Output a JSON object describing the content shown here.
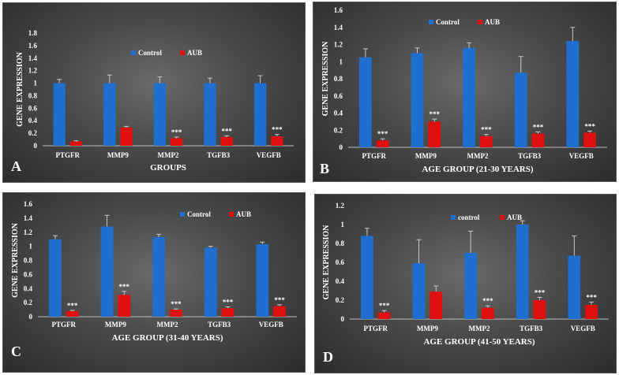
{
  "colors": {
    "control": "#1f6fd1",
    "aub": "#e01010",
    "axis": "#bdbdbd",
    "text": "#ffffff",
    "letter": "#ffffff"
  },
  "chart_data": [
    {
      "type": "bar",
      "panel_letter": "A",
      "xlabel": "GROUPS",
      "ylabel": "GENE EXPRESSION",
      "ylim": [
        0,
        1.8
      ],
      "yticks": [
        "0",
        "0.2",
        "0.4",
        "0.6",
        "0.8",
        "1",
        "1.2",
        "1.4",
        "1.6",
        "1.8"
      ],
      "legend_placement": "top-center",
      "categories": [
        "PTGFR",
        "MMP9",
        "MMP2",
        "TGFB3",
        "VEGFB"
      ],
      "series": [
        {
          "name": "Control",
          "values": [
            1.0,
            1.0,
            1.0,
            1.0,
            1.0
          ],
          "errors": [
            0.06,
            0.13,
            0.1,
            0.08,
            0.12
          ]
        },
        {
          "name": "AUB",
          "values": [
            0.07,
            0.29,
            0.12,
            0.14,
            0.15
          ],
          "errors": [
            0.01,
            0.02,
            0.02,
            0.02,
            0.03
          ]
        }
      ],
      "annotations": [
        "",
        "",
        "***",
        "***",
        "***"
      ]
    },
    {
      "type": "bar",
      "panel_letter": "B",
      "xlabel": "AGE GROUP (21-30 YEARS)",
      "ylabel": "GENE EXPRESSION",
      "ylim": [
        0,
        1.6
      ],
      "yticks": [
        "0",
        "0.2",
        "0.4",
        "0.6",
        "0.8",
        "1",
        "1.2",
        "1.4",
        "1.6"
      ],
      "legend_placement": "top-center",
      "categories": [
        "PTGFR",
        "MMP9",
        "MMP2",
        "TGFB3",
        "VEGFB"
      ],
      "series": [
        {
          "name": "Control",
          "values": [
            1.05,
            1.1,
            1.16,
            0.87,
            1.24
          ],
          "errors": [
            0.1,
            0.06,
            0.06,
            0.19,
            0.16
          ]
        },
        {
          "name": "AUB",
          "values": [
            0.08,
            0.3,
            0.13,
            0.16,
            0.17
          ],
          "errors": [
            0.02,
            0.03,
            0.02,
            0.02,
            0.02
          ]
        }
      ],
      "annotations": [
        "***",
        "***",
        "***",
        "***",
        "***"
      ]
    },
    {
      "type": "bar",
      "panel_letter": "C",
      "xlabel": "AGE GROUP (31-40 YEARS)",
      "ylabel": "GENE EXPRESSION",
      "ylim": [
        0,
        1.6
      ],
      "yticks": [
        "0",
        "0.2",
        "0.4",
        "0.6",
        "0.8",
        "1",
        "1.2",
        "1.4",
        "1.6"
      ],
      "legend_placement": "top-right",
      "categories": [
        "PTGFR",
        "MMP9",
        "MMP2",
        "TGFB3",
        "VEGFB"
      ],
      "series": [
        {
          "name": "Control",
          "values": [
            1.1,
            1.28,
            1.13,
            0.98,
            1.03
          ],
          "errors": [
            0.05,
            0.16,
            0.04,
            0.02,
            0.03
          ]
        },
        {
          "name": "AUB",
          "values": [
            0.08,
            0.31,
            0.1,
            0.12,
            0.15
          ],
          "errors": [
            0.01,
            0.05,
            0.01,
            0.02,
            0.02
          ]
        }
      ],
      "annotations": [
        "***",
        "***",
        "***",
        "***",
        "***"
      ]
    },
    {
      "type": "bar",
      "panel_letter": "D",
      "xlabel": "AGE GROUP (41-50 YEARS)",
      "ylabel": "GENE EXPRESSION",
      "ylim": [
        0,
        1.2
      ],
      "yticks": [
        "0",
        "0.2",
        "0.4",
        "0.6",
        "0.8",
        "1",
        "1.2"
      ],
      "legend_placement": "top-center",
      "categories": [
        "PTGFR",
        "MMP9",
        "MMP2",
        "TGFB3",
        "VEGFB"
      ],
      "series": [
        {
          "name": "control",
          "values": [
            0.88,
            0.59,
            0.7,
            1.0,
            0.67
          ],
          "errors": [
            0.08,
            0.25,
            0.23,
            0.04,
            0.21
          ]
        },
        {
          "name": "AUB",
          "values": [
            0.07,
            0.29,
            0.12,
            0.2,
            0.15
          ],
          "errors": [
            0.02,
            0.06,
            0.02,
            0.03,
            0.03
          ]
        }
      ],
      "annotations": [
        "***",
        "",
        "***",
        "***",
        "***"
      ]
    }
  ]
}
